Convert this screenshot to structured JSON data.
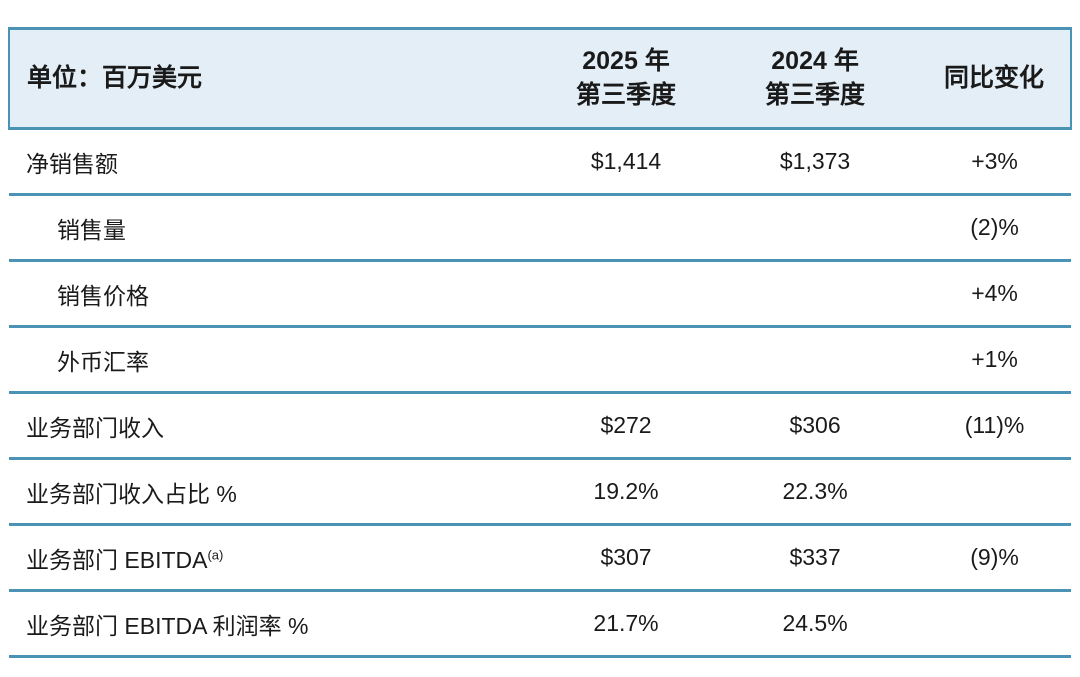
{
  "colors": {
    "header_background": "#e3eef7",
    "rule": "#4a93b5",
    "text": "#1a1a1a",
    "page_background": "#ffffff"
  },
  "table": {
    "columns": {
      "unit_label": "单位：百万美元",
      "y2025_line1": "2025 年",
      "y2025_line2": "第三季度",
      "y2024_line1": "2024 年",
      "y2024_line2": "第三季度",
      "yoy_label": "同比变化"
    },
    "rows": [
      {
        "label": "净销售额",
        "sup": "",
        "v2025": "$1,414",
        "v2024": "$1,373",
        "yoy": "+3%"
      },
      {
        "label": "销售量",
        "sup": "",
        "v2025": "",
        "v2024": "",
        "yoy": "(2)%"
      },
      {
        "label": "销售价格",
        "sup": "",
        "v2025": "",
        "v2024": "",
        "yoy": "+4%"
      },
      {
        "label": "外币汇率",
        "sup": "",
        "v2025": "",
        "v2024": "",
        "yoy": "+1%"
      },
      {
        "label": "业务部门收入",
        "sup": "",
        "v2025": "$272",
        "v2024": "$306",
        "yoy": "(11)%"
      },
      {
        "label": "业务部门收入占比 %",
        "sup": "",
        "v2025": "19.2%",
        "v2024": "22.3%",
        "yoy": ""
      },
      {
        "label": "业务部门 EBITDA",
        "sup": "(a)",
        "v2025": "$307",
        "v2024": "$337",
        "yoy": "(9)%"
      },
      {
        "label": "业务部门 EBITDA 利润率 %",
        "sup": "",
        "v2025": "21.7%",
        "v2024": "24.5%",
        "yoy": ""
      }
    ]
  }
}
